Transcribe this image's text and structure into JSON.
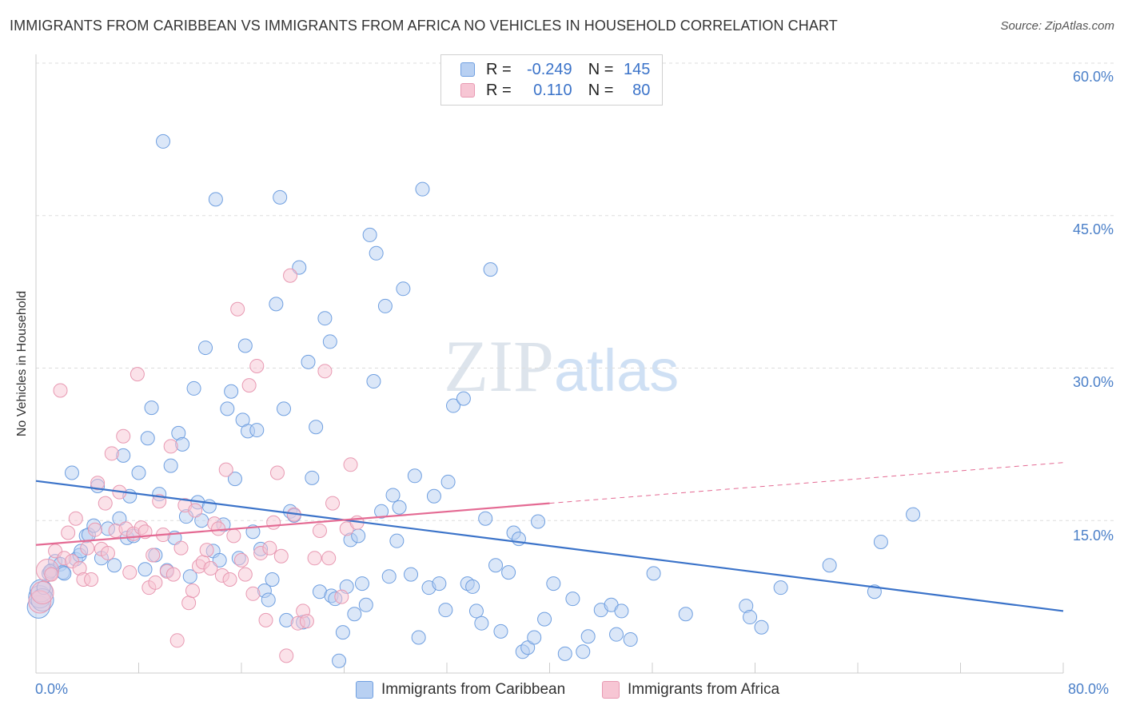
{
  "title": "IMMIGRANTS FROM CARIBBEAN VS IMMIGRANTS FROM AFRICA NO VEHICLES IN HOUSEHOLD CORRELATION CHART",
  "source": "Source: ZipAtlas.com",
  "watermark": {
    "zip": "ZIP",
    "atlas": "atlas"
  },
  "legend": {
    "rows": [
      {
        "r_label": "R =",
        "r_value": "-0.249",
        "n_label": "N =",
        "n_value": "145"
      },
      {
        "r_label": "R =",
        "r_value": "0.110",
        "n_label": "N =",
        "n_value": "80"
      }
    ]
  },
  "bottom_legend": {
    "blue": "Immigrants from Caribbean",
    "pink": "Immigrants from Africa"
  },
  "colors": {
    "blue": "#3b73c9",
    "blue_fill": "#b8d0f2",
    "pink": "#e46a93",
    "pink_fill": "#f7c6d4",
    "grid": "#dddddd",
    "tick": "#4a7fc8"
  },
  "chart_data": {
    "type": "scatter",
    "title": "IMMIGRANTS FROM CARIBBEAN VS IMMIGRANTS FROM AFRICA NO VEHICLES IN HOUSEHOLD CORRELATION CHART",
    "xlabel": "",
    "ylabel": "No Vehicles in Household",
    "xlim": [
      0,
      80
    ],
    "ylim": [
      0,
      60
    ],
    "x_tick_labels": [
      "0.0%",
      "80.0%"
    ],
    "y_tick_labels": [
      "15.0%",
      "30.0%",
      "45.0%",
      "60.0%"
    ],
    "y_ticks": [
      15,
      30,
      45,
      60
    ],
    "grid": true,
    "legend_position": "top-center",
    "series": [
      {
        "name": "Immigrants from Caribbean",
        "color": "#6f9fe0",
        "trend": {
          "x": [
            0,
            80
          ],
          "y": [
            18.9,
            6.1
          ],
          "dashed_from": null
        },
        "points": [
          [
            0.2,
            6.5
          ],
          [
            0.3,
            7.5
          ],
          [
            0.4,
            8.1
          ],
          [
            0.5,
            7.2
          ],
          [
            1.0,
            9.8
          ],
          [
            1.2,
            10.1
          ],
          [
            1.5,
            11.0
          ],
          [
            1.9,
            10.7
          ],
          [
            2.1,
            9.9
          ],
          [
            2.2,
            9.8
          ],
          [
            2.8,
            19.7
          ],
          [
            3.1,
            11.2
          ],
          [
            3.4,
            11.6
          ],
          [
            3.5,
            12.0
          ],
          [
            3.9,
            13.5
          ],
          [
            4.1,
            13.6
          ],
          [
            4.5,
            14.5
          ],
          [
            4.8,
            18.4
          ],
          [
            5.1,
            11.3
          ],
          [
            5.6,
            14.2
          ],
          [
            6.1,
            10.6
          ],
          [
            6.5,
            15.2
          ],
          [
            6.8,
            21.4
          ],
          [
            7.1,
            13.3
          ],
          [
            7.3,
            17.4
          ],
          [
            7.6,
            13.5
          ],
          [
            8.0,
            19.7
          ],
          [
            8.5,
            10.2
          ],
          [
            8.7,
            23.1
          ],
          [
            9.0,
            26.1
          ],
          [
            9.3,
            11.6
          ],
          [
            9.6,
            17.6
          ],
          [
            9.9,
            52.3
          ],
          [
            10.2,
            10.1
          ],
          [
            10.5,
            20.4
          ],
          [
            10.8,
            13.3
          ],
          [
            11.1,
            23.6
          ],
          [
            11.4,
            22.5
          ],
          [
            11.7,
            15.4
          ],
          [
            12.0,
            9.5
          ],
          [
            12.3,
            28.0
          ],
          [
            12.6,
            16.8
          ],
          [
            12.9,
            15.0
          ],
          [
            13.2,
            32.0
          ],
          [
            13.5,
            16.4
          ],
          [
            13.8,
            12.0
          ],
          [
            14.0,
            46.6
          ],
          [
            14.3,
            11.1
          ],
          [
            14.6,
            14.6
          ],
          [
            14.9,
            26.0
          ],
          [
            15.2,
            27.7
          ],
          [
            15.5,
            19.1
          ],
          [
            15.8,
            11.3
          ],
          [
            16.1,
            24.9
          ],
          [
            16.3,
            32.2
          ],
          [
            16.5,
            23.8
          ],
          [
            16.9,
            13.9
          ],
          [
            17.2,
            23.9
          ],
          [
            17.5,
            12.2
          ],
          [
            17.8,
            8.1
          ],
          [
            18.1,
            7.2
          ],
          [
            18.4,
            9.2
          ],
          [
            18.7,
            36.3
          ],
          [
            19.0,
            46.8
          ],
          [
            19.3,
            26.0
          ],
          [
            19.5,
            5.2
          ],
          [
            19.8,
            15.9
          ],
          [
            20.1,
            15.5
          ],
          [
            20.5,
            39.9
          ],
          [
            20.8,
            5.0
          ],
          [
            21.2,
            30.6
          ],
          [
            21.5,
            19.2
          ],
          [
            21.8,
            24.2
          ],
          [
            22.1,
            8.0
          ],
          [
            22.5,
            34.9
          ],
          [
            22.9,
            32.6
          ],
          [
            23.0,
            7.6
          ],
          [
            23.3,
            7.3
          ],
          [
            23.6,
            1.2
          ],
          [
            23.9,
            4.0
          ],
          [
            24.2,
            8.5
          ],
          [
            24.5,
            13.1
          ],
          [
            24.8,
            5.8
          ],
          [
            25.1,
            13.5
          ],
          [
            25.4,
            8.8
          ],
          [
            25.7,
            6.7
          ],
          [
            26.0,
            43.1
          ],
          [
            26.3,
            28.7
          ],
          [
            26.5,
            41.3
          ],
          [
            26.9,
            15.9
          ],
          [
            27.2,
            36.1
          ],
          [
            27.5,
            9.5
          ],
          [
            27.8,
            17.5
          ],
          [
            28.1,
            13.0
          ],
          [
            28.3,
            16.3
          ],
          [
            28.6,
            37.8
          ],
          [
            29.2,
            9.7
          ],
          [
            29.5,
            19.4
          ],
          [
            29.8,
            3.5
          ],
          [
            30.1,
            47.6
          ],
          [
            30.6,
            8.4
          ],
          [
            31.0,
            17.4
          ],
          [
            31.4,
            8.8
          ],
          [
            31.9,
            6.2
          ],
          [
            32.1,
            18.8
          ],
          [
            32.5,
            26.3
          ],
          [
            33.3,
            27.0
          ],
          [
            33.6,
            8.8
          ],
          [
            34.0,
            8.5
          ],
          [
            34.3,
            6.1
          ],
          [
            34.7,
            4.9
          ],
          [
            35.0,
            15.2
          ],
          [
            35.4,
            39.7
          ],
          [
            35.8,
            10.6
          ],
          [
            36.2,
            4.1
          ],
          [
            36.8,
            9.9
          ],
          [
            37.2,
            13.8
          ],
          [
            37.6,
            13.2
          ],
          [
            37.9,
            2.1
          ],
          [
            38.3,
            2.5
          ],
          [
            38.8,
            3.5
          ],
          [
            39.1,
            14.9
          ],
          [
            39.6,
            5.3
          ],
          [
            40.3,
            8.8
          ],
          [
            41.2,
            1.9
          ],
          [
            41.8,
            7.3
          ],
          [
            42.6,
            2.1
          ],
          [
            43.0,
            3.6
          ],
          [
            44.0,
            6.2
          ],
          [
            44.8,
            6.7
          ],
          [
            45.2,
            3.8
          ],
          [
            45.6,
            6.1
          ],
          [
            46.3,
            3.3
          ],
          [
            48.1,
            9.8
          ],
          [
            50.6,
            5.8
          ],
          [
            55.3,
            6.6
          ],
          [
            55.6,
            5.5
          ],
          [
            56.5,
            4.5
          ],
          [
            58.0,
            8.4
          ],
          [
            61.8,
            10.6
          ],
          [
            65.3,
            8.0
          ],
          [
            65.8,
            12.9
          ],
          [
            68.3,
            15.6
          ],
          [
            0.6,
            8.4
          ],
          [
            1.1,
            10.0
          ]
        ]
      },
      {
        "name": "Immigrants from Africa",
        "color": "#e899b2",
        "trend": {
          "x": [
            0,
            40,
            80
          ],
          "y": [
            12.6,
            16.7,
            20.7
          ],
          "dashed_from": 40
        },
        "points": [
          [
            0.3,
            7.0
          ],
          [
            0.5,
            7.9
          ],
          [
            0.9,
            10.1
          ],
          [
            1.2,
            9.7
          ],
          [
            1.5,
            12.0
          ],
          [
            1.9,
            27.8
          ],
          [
            2.2,
            11.3
          ],
          [
            2.5,
            13.8
          ],
          [
            2.8,
            11.0
          ],
          [
            3.1,
            15.2
          ],
          [
            3.4,
            10.3
          ],
          [
            3.7,
            9.2
          ],
          [
            4.0,
            12.3
          ],
          [
            4.3,
            9.2
          ],
          [
            4.6,
            14.1
          ],
          [
            4.8,
            18.7
          ],
          [
            5.1,
            12.2
          ],
          [
            5.4,
            16.7
          ],
          [
            5.6,
            11.8
          ],
          [
            5.9,
            21.6
          ],
          [
            6.2,
            14.0
          ],
          [
            6.5,
            17.8
          ],
          [
            6.8,
            23.3
          ],
          [
            7.0,
            14.2
          ],
          [
            7.3,
            9.9
          ],
          [
            7.6,
            13.7
          ],
          [
            7.9,
            29.4
          ],
          [
            8.2,
            14.3
          ],
          [
            8.5,
            13.9
          ],
          [
            8.8,
            8.4
          ],
          [
            9.1,
            11.6
          ],
          [
            9.3,
            8.9
          ],
          [
            9.6,
            16.9
          ],
          [
            9.9,
            13.6
          ],
          [
            10.2,
            10.0
          ],
          [
            10.5,
            22.3
          ],
          [
            10.7,
            9.7
          ],
          [
            11.0,
            3.2
          ],
          [
            11.3,
            12.3
          ],
          [
            11.6,
            16.5
          ],
          [
            11.9,
            6.9
          ],
          [
            12.2,
            8.1
          ],
          [
            12.4,
            16.0
          ],
          [
            12.7,
            10.5
          ],
          [
            13.0,
            10.9
          ],
          [
            13.3,
            12.1
          ],
          [
            13.6,
            10.3
          ],
          [
            13.9,
            14.7
          ],
          [
            14.2,
            14.2
          ],
          [
            14.5,
            9.6
          ],
          [
            14.8,
            20.0
          ],
          [
            15.1,
            9.2
          ],
          [
            15.4,
            13.5
          ],
          [
            15.7,
            35.8
          ],
          [
            16.0,
            11.1
          ],
          [
            16.3,
            9.7
          ],
          [
            16.6,
            28.3
          ],
          [
            16.9,
            7.8
          ],
          [
            17.2,
            30.2
          ],
          [
            17.5,
            11.8
          ],
          [
            17.9,
            5.2
          ],
          [
            18.2,
            12.3
          ],
          [
            18.5,
            14.8
          ],
          [
            18.8,
            19.7
          ],
          [
            19.1,
            11.5
          ],
          [
            19.5,
            1.7
          ],
          [
            19.8,
            39.1
          ],
          [
            20.1,
            15.6
          ],
          [
            20.4,
            4.9
          ],
          [
            20.8,
            6.1
          ],
          [
            21.1,
            5.1
          ],
          [
            21.7,
            11.3
          ],
          [
            22.1,
            14.0
          ],
          [
            22.5,
            29.7
          ],
          [
            22.8,
            11.3
          ],
          [
            23.1,
            16.7
          ],
          [
            23.8,
            7.5
          ],
          [
            24.2,
            14.2
          ],
          [
            24.5,
            20.5
          ],
          [
            25.0,
            14.8
          ]
        ]
      }
    ]
  }
}
